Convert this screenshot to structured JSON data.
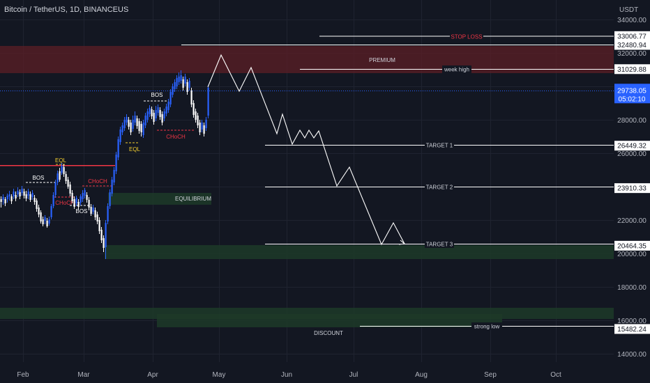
{
  "header": {
    "symbol_title": "Bitcoin / TetherUS, 1D, BINANCEUS",
    "currency": "USDT"
  },
  "colors": {
    "background": "#131722",
    "grid": "#1f2330",
    "candle_up": "#2962ff",
    "candle_down": "#ffffff",
    "premium_zone": "#5c1f26",
    "demand_zone": "#1d3a28",
    "level_line": "#ffffff",
    "last_price_tag": "#2962ff",
    "stop_loss": "#f23645",
    "bos_label": "#ffffff",
    "choch_label": "#f23645",
    "eql_label": "#f5d02f"
  },
  "price_axis": {
    "ticks": [
      "34000.00",
      "32000.00",
      "30000.00",
      "28000.00",
      "26000.00",
      "24000.00",
      "22000.00",
      "20000.00",
      "18000.00",
      "16000.00",
      "14000.00"
    ],
    "price_tags": [
      {
        "price": 33006.77,
        "label": "33006.77",
        "style": "level"
      },
      {
        "price": 32480.94,
        "label": "32480.94",
        "style": "level"
      },
      {
        "price": 31029.88,
        "label": "31029.88",
        "style": "level"
      },
      {
        "price": 29738.05,
        "label": "29738.05",
        "countdown": "05:02:10",
        "style": "last"
      },
      {
        "price": 26449.32,
        "label": "26449.32",
        "style": "level"
      },
      {
        "price": 23910.33,
        "label": "23910.33",
        "style": "level"
      },
      {
        "price": 20464.35,
        "label": "20464.35",
        "style": "level"
      },
      {
        "price": 15482.24,
        "label": "15482.24",
        "style": "level"
      }
    ]
  },
  "time_axis": {
    "labels": [
      "Feb",
      "Mar",
      "Apr",
      "May",
      "Jun",
      "Jul",
      "Aug",
      "Sep",
      "Oct"
    ]
  },
  "annotations": {
    "stop_loss": "STOP LOSS",
    "premium": "PREMIUM",
    "week_high": "week high",
    "target_1": "TARGET 1",
    "target_2": "TARGET 2",
    "target_3": "TARGET 3",
    "equilibrium": "EQUILIBRIUM",
    "discount": "DISCOUNT",
    "strong_low": "strong low",
    "bos": "BOS",
    "choch": "CHoCH",
    "eql": "EQL"
  }
}
